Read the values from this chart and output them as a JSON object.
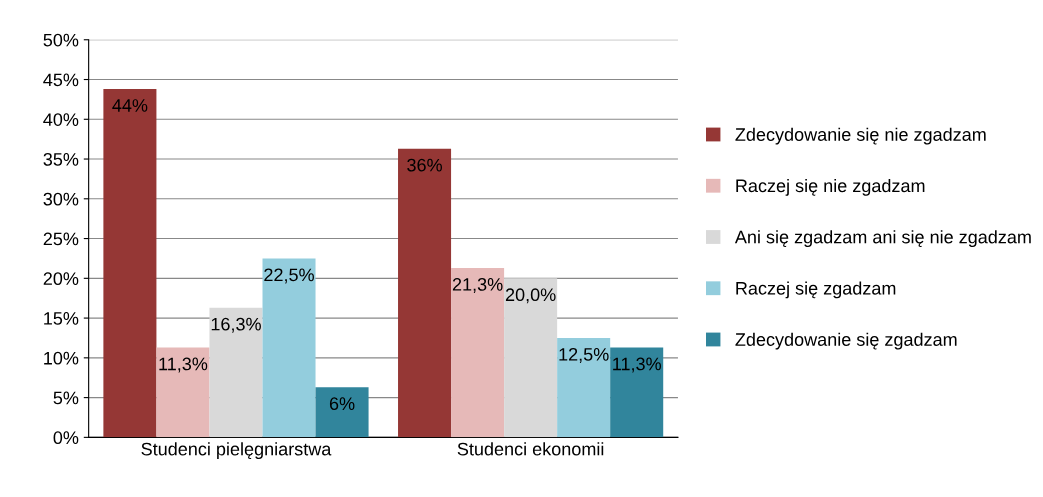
{
  "chart_data": {
    "type": "bar",
    "categories": [
      "Studenci pielęgniarstwa",
      "Studenci ekonomii"
    ],
    "series": [
      {
        "name": "Zdecydowanie się nie zgadzam",
        "color": "#953735",
        "values": [
          43.8,
          36.3
        ],
        "value_labels": [
          "44%",
          "36%"
        ]
      },
      {
        "name": "Raczej się nie zgadzam",
        "color": "#e6b9b8",
        "values": [
          11.3,
          21.3
        ],
        "value_labels": [
          "11,3%",
          "21,3%"
        ]
      },
      {
        "name": "Ani się zgadzam ani się nie zgadzam",
        "color": "#d9d9d9",
        "values": [
          16.3,
          20.0
        ],
        "value_labels": [
          "16,3%",
          "20,0%"
        ]
      },
      {
        "name": "Raczej się zgadzam",
        "color": "#93cddd",
        "values": [
          22.5,
          12.5
        ],
        "value_labels": [
          "22,5%",
          "12,5%"
        ]
      },
      {
        "name": "Zdecydowanie się zgadzam",
        "color": "#31859c",
        "values": [
          6.3,
          11.3
        ],
        "value_labels": [
          "6%",
          "11,3%"
        ]
      }
    ],
    "ylim": [
      0,
      50
    ],
    "yticks": [
      {
        "value": 0,
        "label": "0%"
      },
      {
        "value": 5,
        "label": "5%"
      },
      {
        "value": 10,
        "label": "10%"
      },
      {
        "value": 15,
        "label": "15%"
      },
      {
        "value": 20,
        "label": "20%"
      },
      {
        "value": 25,
        "label": "25%"
      },
      {
        "value": 30,
        "label": "30%"
      },
      {
        "value": 35,
        "label": "35%"
      },
      {
        "value": 40,
        "label": "40%"
      },
      {
        "value": 45,
        "label": "45%"
      },
      {
        "value": 50,
        "label": "50%"
      }
    ],
    "grid": "y",
    "legend": "right"
  }
}
